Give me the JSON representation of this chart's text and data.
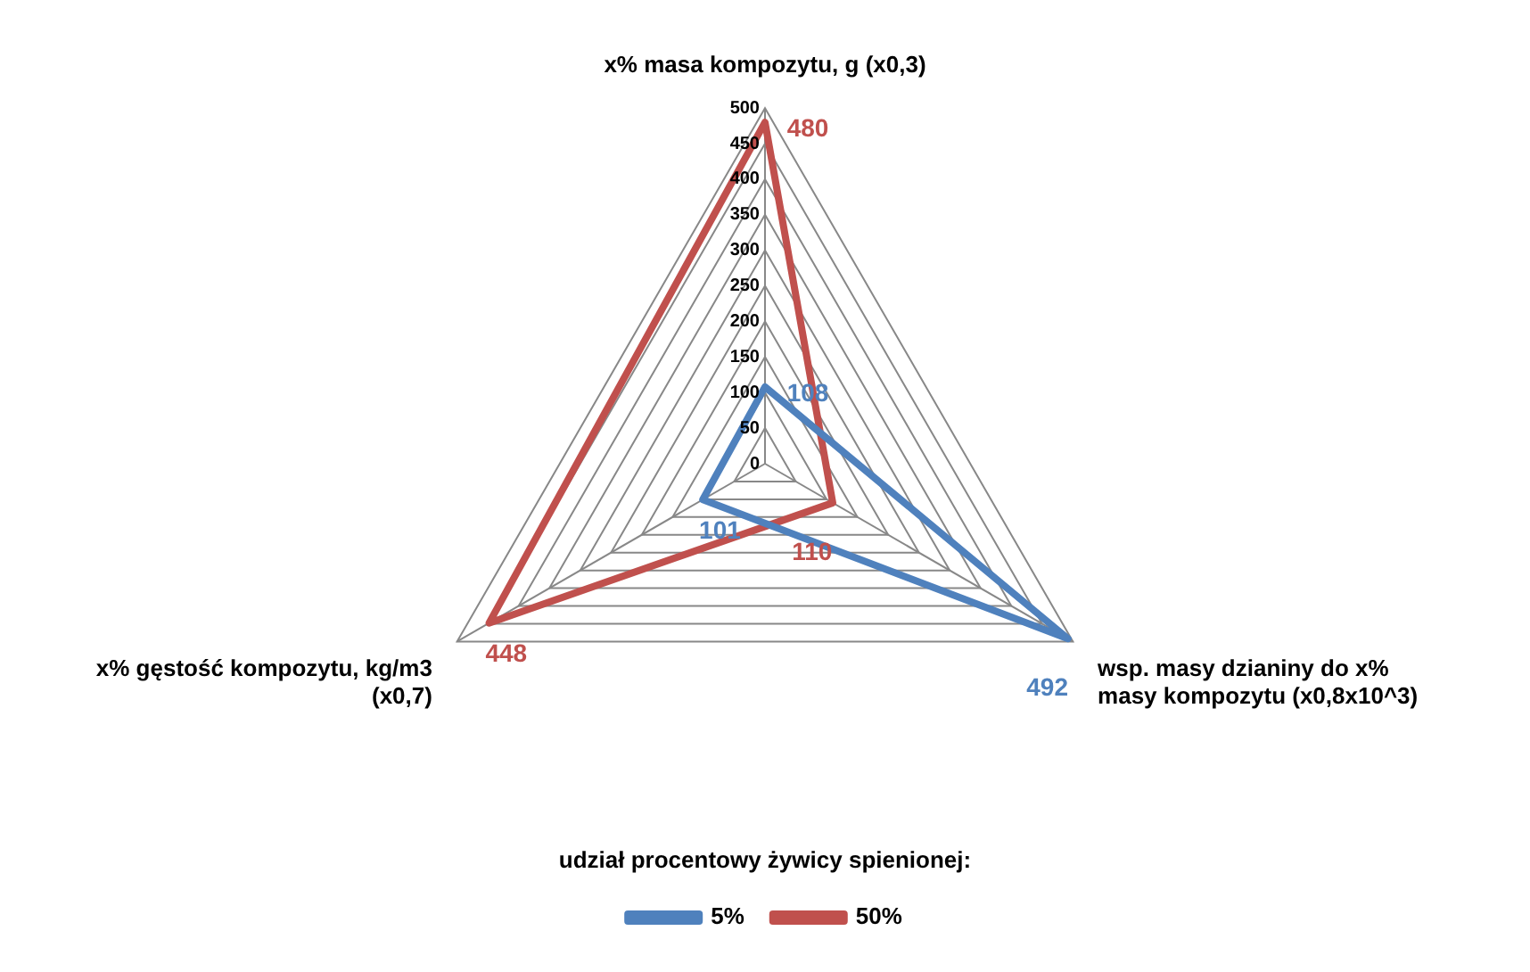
{
  "chart_data": {
    "type": "radar",
    "categories": [
      "x% masa kompozytu, g (x0,3)",
      "wsp. masy dzianiny do x% masy kompozytu (x0,8x10^3)",
      "x% gęstość kompozytu, kg/m3 (x0,7)"
    ],
    "series": [
      {
        "name": "5%",
        "color": "#4f81bd",
        "values": [
          108,
          492,
          101
        ]
      },
      {
        "name": "50%",
        "color": "#c0504d",
        "values": [
          480,
          110,
          448
        ]
      }
    ],
    "ylim": [
      0,
      500
    ],
    "yticks": [
      0,
      50,
      100,
      150,
      200,
      250,
      300,
      350,
      400,
      450,
      500
    ],
    "data_labels": true,
    "legend": "bottom",
    "legend_title": "udział procentowy żywicy spienionej:",
    "grid": true,
    "marker": "none"
  }
}
